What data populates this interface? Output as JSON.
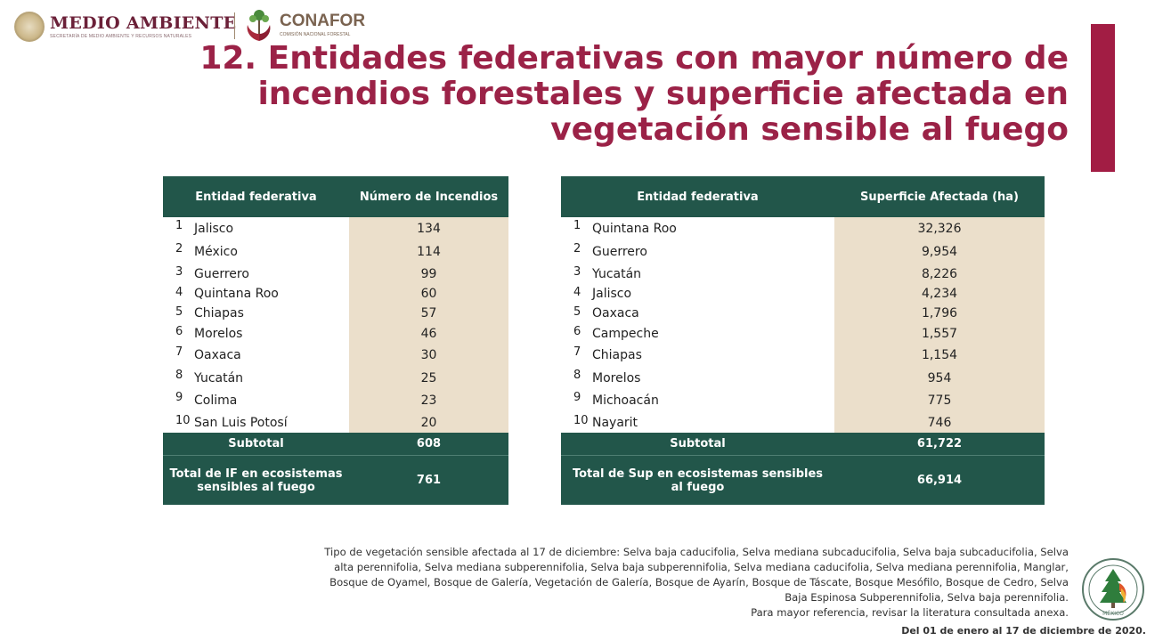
{
  "header": {
    "left_logo_title": "MEDIO AMBIENTE",
    "left_logo_subtitle": "SECRETARÍA DE MEDIO AMBIENTE Y RECURSOS NATURALES",
    "right_logo_title": "CONAFOR",
    "right_logo_subtitle": "COMISIÓN NACIONAL FORESTAL",
    "left_seal_icon": "mexico-seal-icon",
    "right_logo_icon": "conafor-tree-icon"
  },
  "title_lines": [
    "12. Entidades federativas con mayor número de",
    "incendios forestales y superficie afectada en",
    "vegetación sensible al fuego"
  ],
  "colors": {
    "accent": "#9b2247",
    "table_header": "#22564a",
    "table_value_bg": "#ebdfcb"
  },
  "table_fires": {
    "col1": "Entidad federativa",
    "col2": "Número de Incendios",
    "rows": [
      {
        "rank": "1",
        "name": "Jalisco",
        "value": "134"
      },
      {
        "rank": "2",
        "name": "México",
        "value": "114"
      },
      {
        "rank": "3",
        "name": "Guerrero",
        "value": "99"
      },
      {
        "rank": "4",
        "name": "Quintana Roo",
        "value": "60"
      },
      {
        "rank": "5",
        "name": "Chiapas",
        "value": "57"
      },
      {
        "rank": "6",
        "name": "Morelos",
        "value": "46"
      },
      {
        "rank": "7",
        "name": "Oaxaca",
        "value": "30"
      },
      {
        "rank": "8",
        "name": "Yucatán",
        "value": "25"
      },
      {
        "rank": "9",
        "name": "Colima",
        "value": "23"
      },
      {
        "rank": "10",
        "name": "San Luis Potosí",
        "value": "20"
      }
    ],
    "subtotal_label": "Subtotal",
    "subtotal_value": "608",
    "total_label": "Total de IF en ecosistemas sensibles al fuego",
    "total_value": "761"
  },
  "table_area": {
    "col1": "Entidad federativa",
    "col2": "Superficie Afectada (ha)",
    "rows": [
      {
        "rank": "1",
        "name": "Quintana Roo",
        "value": "32,326"
      },
      {
        "rank": "2",
        "name": "Guerrero",
        "value": "9,954"
      },
      {
        "rank": "3",
        "name": "Yucatán",
        "value": "8,226"
      },
      {
        "rank": "4",
        "name": "Jalisco",
        "value": "4,234"
      },
      {
        "rank": "5",
        "name": "Oaxaca",
        "value": "1,796"
      },
      {
        "rank": "6",
        "name": "Campeche",
        "value": "1,557"
      },
      {
        "rank": "7",
        "name": "Chiapas",
        "value": "1,154"
      },
      {
        "rank": "8",
        "name": "Morelos",
        "value": "954"
      },
      {
        "rank": "9",
        "name": "Michoacán",
        "value": "775"
      },
      {
        "rank": "10",
        "name": "Nayarit",
        "value": "746"
      }
    ],
    "subtotal_label": "Subtotal",
    "subtotal_value": "61,722",
    "total_label": "Total de Sup en ecosistemas sensibles al fuego",
    "total_value": "66,914"
  },
  "footnote_lines": [
    "Tipo de vegetación sensible afectada al 17 de diciembre: Selva baja caducifolia, Selva mediana subcaducifolia, Selva baja subcaducifolia, Selva",
    "alta perennifolia, Selva mediana subperennifolia, Selva baja subperennifolia, Selva mediana caducifolia, Selva mediana perennifolia, Manglar,",
    "Bosque de Oyamel, Bosque de Galería, Vegetación de Galería, Bosque de Ayarín, Bosque de Táscate, Bosque Mesófilo, Bosque de Cedro, Selva",
    "Baja Espinosa Subperennifolia, Selva baja perennifolia.",
    "Para mayor referencia, revisar la literatura consultada anexa."
  ],
  "date_range": "Del 01 de enero al 17 de diciembre de 2020.",
  "program_seal_icon": "fire-management-program-seal-icon",
  "program_seal_text": "MÉXICO"
}
